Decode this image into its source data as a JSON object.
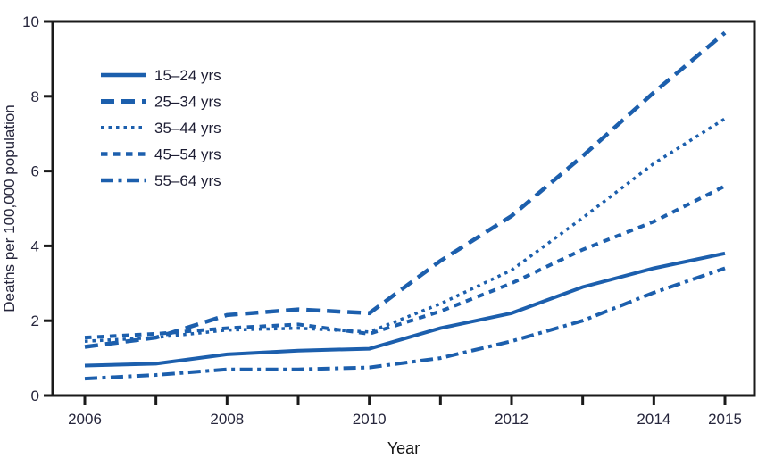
{
  "chart_data": {
    "type": "line",
    "x": [
      2006,
      2007,
      2008,
      2009,
      2010,
      2011,
      2012,
      2013,
      2014,
      2015
    ],
    "series": [
      {
        "name": "15–24 yrs",
        "dash": "solid",
        "values": [
          0.8,
          0.85,
          1.1,
          1.2,
          1.25,
          1.8,
          2.2,
          2.9,
          3.4,
          3.8
        ]
      },
      {
        "name": "25–34 yrs",
        "dash": "long-dash",
        "values": [
          1.3,
          1.55,
          2.15,
          2.3,
          2.2,
          3.6,
          4.8,
          6.4,
          8.1,
          9.7
        ]
      },
      {
        "name": "35–44 yrs",
        "dash": "dotted",
        "values": [
          1.45,
          1.55,
          1.75,
          1.8,
          1.7,
          2.45,
          3.35,
          4.75,
          6.2,
          7.4
        ]
      },
      {
        "name": "45–54 yrs",
        "dash": "square-dash",
        "values": [
          1.55,
          1.65,
          1.8,
          1.9,
          1.65,
          2.25,
          3.0,
          3.9,
          4.65,
          5.6
        ]
      },
      {
        "name": "55–64 yrs",
        "dash": "dash-dot",
        "values": [
          0.45,
          0.55,
          0.7,
          0.7,
          0.75,
          1.0,
          1.45,
          2.0,
          2.75,
          3.4
        ]
      }
    ],
    "xlabel": "Year",
    "ylabel": "Deaths per 100,000 population",
    "ylim": [
      0,
      10
    ],
    "y_ticks": [
      0,
      2,
      4,
      6,
      8,
      10
    ],
    "x_ticks": [
      2006,
      2007,
      2008,
      2009,
      2010,
      2011,
      2012,
      2013,
      2014,
      2015
    ],
    "x_tick_labels": [
      "2006",
      "2008",
      "2010",
      "2012",
      "2014",
      "2015"
    ],
    "grid": false,
    "legend_position": "upper-left-inside",
    "line_color": "#1c5fad",
    "axis_color": "#1a1a1a",
    "tick_label_color": "#26263c",
    "legend_text_color": "#1d1d33"
  }
}
